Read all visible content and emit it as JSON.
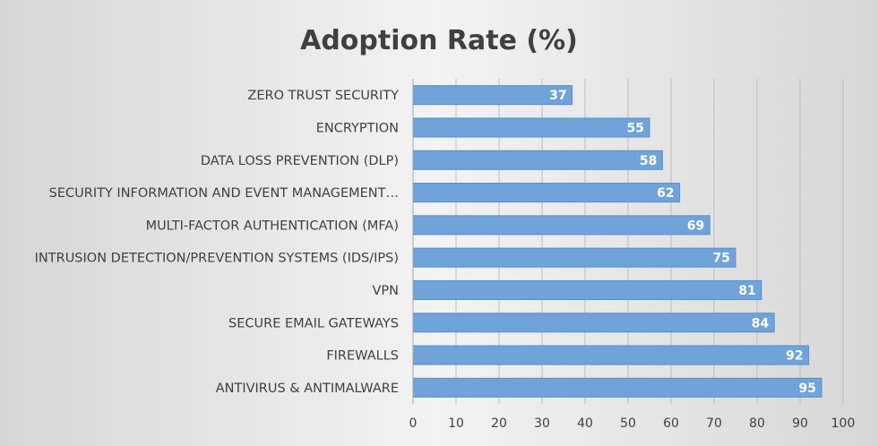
{
  "chart_data": {
    "type": "bar",
    "orientation": "horizontal",
    "title": "Adoption Rate (%)",
    "categories": [
      "ANTIVIRUS & ANTIMALWARE",
      "FIREWALLS",
      "SECURE EMAIL GATEWAYS",
      "VPN",
      "INTRUSION DETECTION/PREVENTION SYSTEMS (IDS/IPS)",
      "MULTI-FACTOR AUTHENTICATION (MFA)",
      "SECURITY INFORMATION AND EVENT MANAGEMENT…",
      "DATA LOSS PREVENTION (DLP)",
      "ENCRYPTION",
      "ZERO TRUST SECURITY"
    ],
    "values": [
      95,
      92,
      84,
      81,
      75,
      69,
      62,
      58,
      55,
      37
    ],
    "xlim": [
      0,
      100
    ],
    "xticks": [
      0,
      10,
      20,
      30,
      40,
      50,
      60,
      70,
      80,
      90,
      100
    ],
    "data_labels": true,
    "grid": "vertical",
    "legend": "none",
    "bar_color": "#6fa3d9",
    "bar_edge_color": "#5b8fc7"
  }
}
